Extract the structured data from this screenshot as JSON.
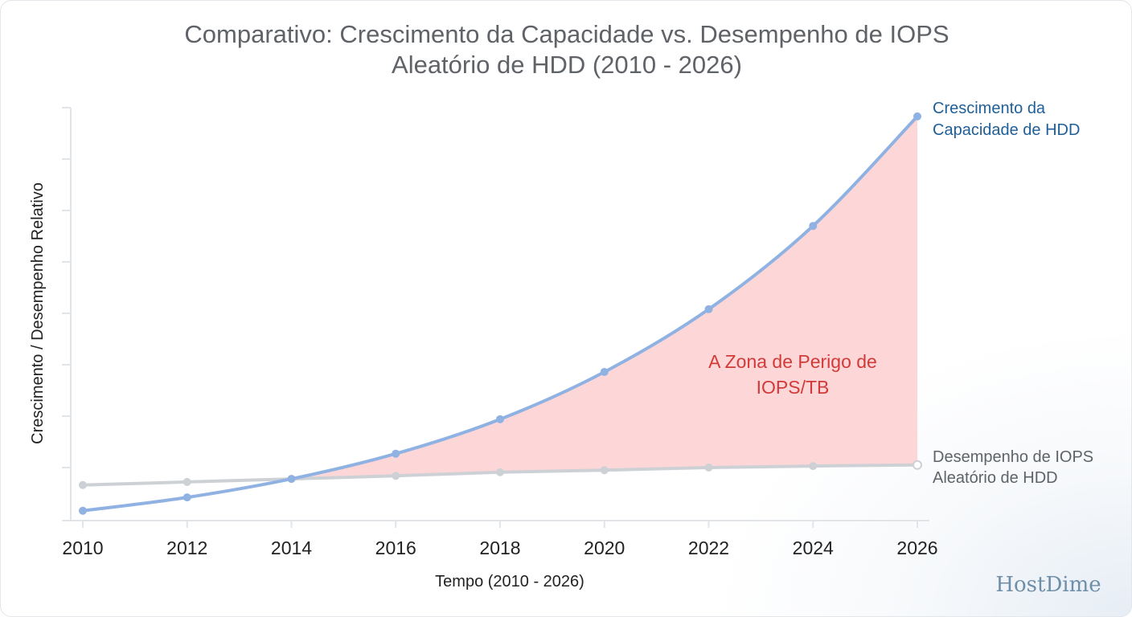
{
  "chart_data": {
    "type": "line",
    "title": [
      "Comparativo: Crescimento da Capacidade vs. Desempenho de IOPS",
      "Aleatório de HDD (2010 - 2026)"
    ],
    "xlabel": "Tempo (2010 - 2026)",
    "ylabel": "Crescimento / Desempenho Relativo",
    "x": [
      2010,
      2012,
      2014,
      2016,
      2018,
      2020,
      2022,
      2024,
      2026
    ],
    "xlim": [
      2010,
      2026
    ],
    "ylim": [
      0,
      8
    ],
    "y_tick_labels": false,
    "grid": false,
    "series": [
      {
        "name": [
          "Crescimento da",
          "Capacidade de HDD"
        ],
        "color": "#8fb2e3",
        "values": [
          0.16,
          0.42,
          0.78,
          1.27,
          1.94,
          2.86,
          4.08,
          5.7,
          7.83
        ]
      },
      {
        "name": [
          "Desempenho de IOPS",
          "Aleatório de HDD"
        ],
        "color": "#cdd1d6",
        "values": [
          0.66,
          0.72,
          0.78,
          0.84,
          0.91,
          0.95,
          1.0,
          1.03,
          1.05
        ]
      }
    ],
    "annotation": {
      "text": [
        "A Zona de Perigo de",
        "IOPS/TB"
      ],
      "fill_color": "#fdd5d5",
      "text_color": "#d23a3a"
    },
    "legend": "inline-right"
  },
  "logo": "HostDime"
}
